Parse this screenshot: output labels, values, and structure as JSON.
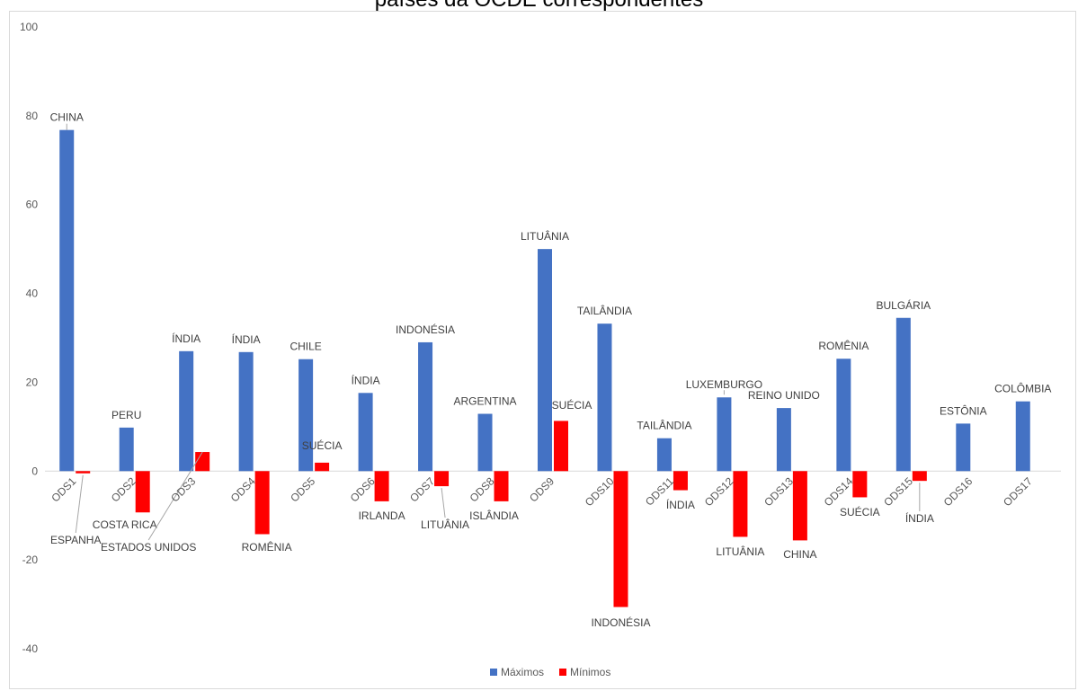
{
  "chart_data": {
    "type": "bar",
    "title": "países da OCDE correspondentes",
    "xlabel": "",
    "ylabel": "",
    "ylim": [
      -40,
      100
    ],
    "yticks": [
      -40,
      -20,
      0,
      20,
      40,
      60,
      80,
      100
    ],
    "grid": false,
    "legend_position": "bottom",
    "categories": [
      "ODS1",
      "ODS2",
      "ODS3",
      "ODS4",
      "ODS5",
      "ODS6",
      "ODS7",
      "ODS8",
      "ODS9",
      "ODS10",
      "ODS11",
      "ODS12",
      "ODS13",
      "ODS14",
      "ODS15",
      "ODS16",
      "ODS17"
    ],
    "series": [
      {
        "name": "Máximos",
        "color": "#4472c4",
        "values": [
          76.8,
          9.8,
          27.0,
          26.8,
          25.2,
          17.6,
          29.0,
          12.9,
          50.0,
          33.2,
          7.4,
          16.6,
          14.2,
          25.3,
          34.5,
          10.7,
          15.7
        ],
        "labels": [
          "CHINA",
          "PERU",
          "ÍNDIA",
          "ÍNDIA",
          "CHILE",
          "ÍNDIA",
          "INDONÉSIA",
          "ARGENTINA",
          "LITUÂNIA",
          "TAILÂNDIA",
          "TAILÂNDIA",
          "LUXEMBURGO",
          "REINO UNIDO",
          "ROMÊNIA",
          "BULGÁRIA",
          "ESTÔNIA",
          "COLÔMBIA"
        ]
      },
      {
        "name": "Mínimos",
        "color": "#ff0000",
        "values": [
          -0.5,
          -9.3,
          4.3,
          -14.2,
          1.9,
          -6.8,
          -3.4,
          -6.8,
          11.3,
          -30.6,
          -4.3,
          -14.8,
          -15.6,
          -5.9,
          -2.2,
          null,
          null
        ],
        "labels": [
          "ESPANHA",
          "COSTA RICA",
          "ESTADOS UNIDOS",
          "ROMÊNIA",
          "SUÉCIA",
          "IRLANDA",
          "LITUÂNIA",
          "ISLÂNDIA",
          "SUÉCIA",
          "INDONÉSIA",
          "ÍNDIA",
          "LITUÂNIA",
          "CHINA",
          "SUÉCIA",
          "ÍNDIA",
          "",
          ""
        ]
      }
    ]
  }
}
